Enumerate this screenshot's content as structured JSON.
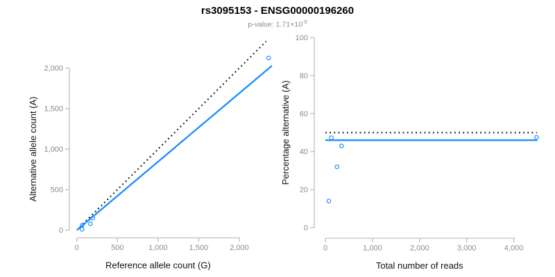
{
  "title": "rs3095153 - ENSG00000196260",
  "subtitle": {
    "base": "p-value: 1.71×10",
    "exponent": "-9"
  },
  "colors": {
    "accent": "#1E90FF",
    "reference_line": "#000000",
    "axis": "#b3b3b3",
    "tick_label": "#8a8a8a"
  },
  "chart_data": [
    {
      "type": "scatter",
      "xlabel": "Reference allele count (G)",
      "ylabel": "Alternative allele count (A)",
      "xlim": [
        0,
        2450
      ],
      "ylim": [
        0,
        2330
      ],
      "grid": false,
      "legend": "none",
      "xticks": {
        "values": [
          0,
          500,
          1000,
          1500,
          2000
        ],
        "labels": [
          "0",
          "500",
          "1,000",
          "1,500",
          "2,000"
        ]
      },
      "yticks": {
        "values": [
          0,
          500,
          1000,
          1500,
          2000
        ],
        "labels": [
          "0",
          "500",
          "1,000",
          "1,500",
          "2,000"
        ]
      },
      "points": [
        [
          64,
          10
        ],
        [
          67,
          61
        ],
        [
          167,
          79
        ],
        [
          196,
          147
        ],
        [
          2360,
          2125
        ]
      ],
      "lines": [
        {
          "name": "identity-line",
          "style": "dotted",
          "from": [
            0,
            0
          ],
          "to": [
            2330,
            2330
          ]
        },
        {
          "name": "fit-line",
          "style": "solid",
          "from": [
            0,
            0
          ],
          "to": [
            2400,
            2028
          ]
        }
      ]
    },
    {
      "type": "scatter",
      "xlabel": "Total number of reads",
      "ylabel": "Percentage alternative (A)",
      "xlim": [
        0,
        4560
      ],
      "ylim": [
        0,
        100
      ],
      "grid": false,
      "legend": "none",
      "xticks": {
        "values": [
          0,
          1000,
          2000,
          3000,
          4000
        ],
        "labels": [
          "0",
          "1,000",
          "2,000",
          "3,000",
          "4,000"
        ]
      },
      "yticks": {
        "values": [
          0,
          20,
          40,
          60,
          80,
          100
        ],
        "labels": [
          "0",
          "20",
          "40",
          "60",
          "80",
          "100"
        ]
      },
      "points": [
        [
          74,
          14
        ],
        [
          128,
          47.3
        ],
        [
          246,
          32
        ],
        [
          343,
          43
        ],
        [
          4482,
          47.5
        ]
      ],
      "lines": [
        {
          "name": "expected-50pct-line",
          "style": "dotted",
          "from": [
            0,
            50
          ],
          "to": [
            4490,
            50
          ]
        },
        {
          "name": "fit-line",
          "style": "solid",
          "from": [
            0,
            46
          ],
          "to": [
            4500,
            46
          ]
        }
      ]
    }
  ]
}
